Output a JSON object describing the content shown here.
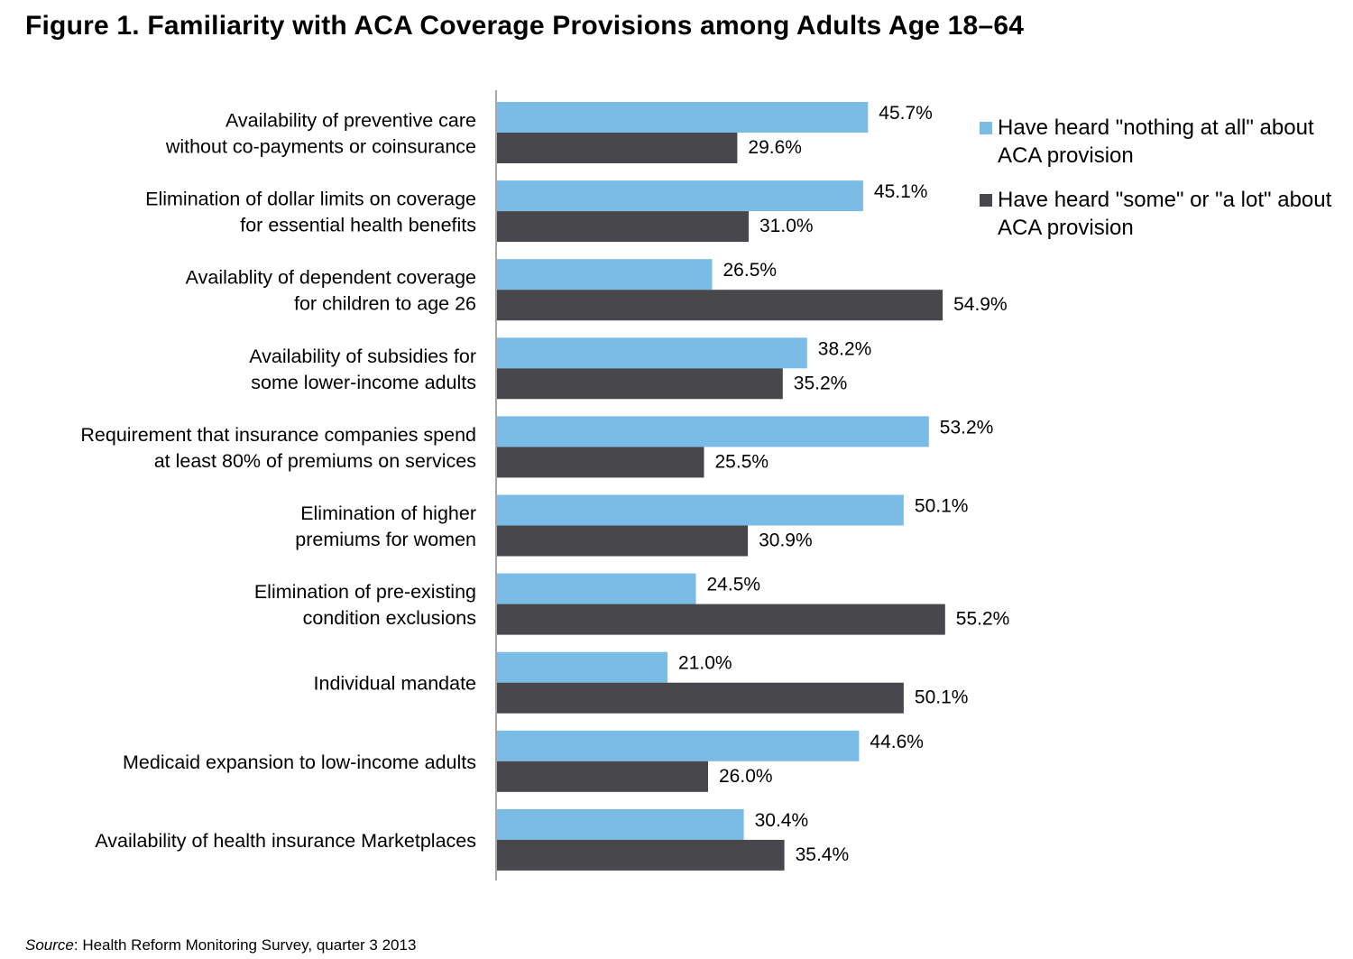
{
  "title": "Figure 1. Familiarity with ACA Coverage Provisions among Adults Age 18–64",
  "source": {
    "label": "Source",
    "text": ": Health Reform Monitoring Survey, quarter 3 2013"
  },
  "colors": {
    "series_nothing": "#7ABCE6",
    "series_some": "#47474C",
    "axis": "#888888"
  },
  "legend": [
    {
      "label": "Have heard \"nothing at all\" about ACA provision",
      "color": "#7ABCE6"
    },
    {
      "label": "Have heard \"some\" or \"a lot\" about  ACA provision",
      "color": "#47474C"
    }
  ],
  "chart_data": {
    "type": "bar",
    "orientation": "horizontal",
    "title": "Figure 1. Familiarity with ACA Coverage Provisions among Adults Age 18–64",
    "categories": [
      [
        "Availability of preventive care",
        "without co-payments or coinsurance"
      ],
      [
        "Elimination of dollar limits on coverage",
        "for essential health benefits"
      ],
      [
        "Availablity of dependent coverage",
        "for children to age 26"
      ],
      [
        "Availability of subsidies for",
        "some lower-income adults"
      ],
      [
        "Requirement that insurance companies spend",
        "at least 80% of premiums on services"
      ],
      [
        "Elimination of higher",
        "premiums for women"
      ],
      [
        "Elimination of pre-existing",
        "condition exclusions"
      ],
      [
        "Individual mandate"
      ],
      [
        "Medicaid expansion to low-income adults"
      ],
      [
        "Availability of health insurance Marketplaces"
      ]
    ],
    "series": [
      {
        "name": "Have heard \"nothing at all\" about ACA provision",
        "values": [
          45.7,
          45.1,
          26.5,
          38.2,
          53.2,
          50.1,
          24.5,
          21.0,
          44.6,
          30.4
        ],
        "labels": [
          "45.7%",
          "45.1%",
          "26.5%",
          "38.2%",
          "53.2%",
          "50.1%",
          "24.5%",
          "21.0%",
          "44.6%",
          "30.4%"
        ]
      },
      {
        "name": "Have heard \"some\" or \"a lot\" about  ACA provision",
        "values": [
          29.6,
          31.0,
          54.9,
          35.2,
          25.5,
          30.9,
          55.2,
          50.1,
          26.0,
          35.4
        ],
        "labels": [
          "29.6%",
          "31.0%",
          "54.9%",
          "35.2%",
          "25.5%",
          "30.9%",
          "55.2%",
          "50.1%",
          "26.0%",
          "35.4%"
        ]
      }
    ],
    "xlim": [
      0,
      60
    ],
    "grid": false,
    "legend_position": "top-right"
  }
}
